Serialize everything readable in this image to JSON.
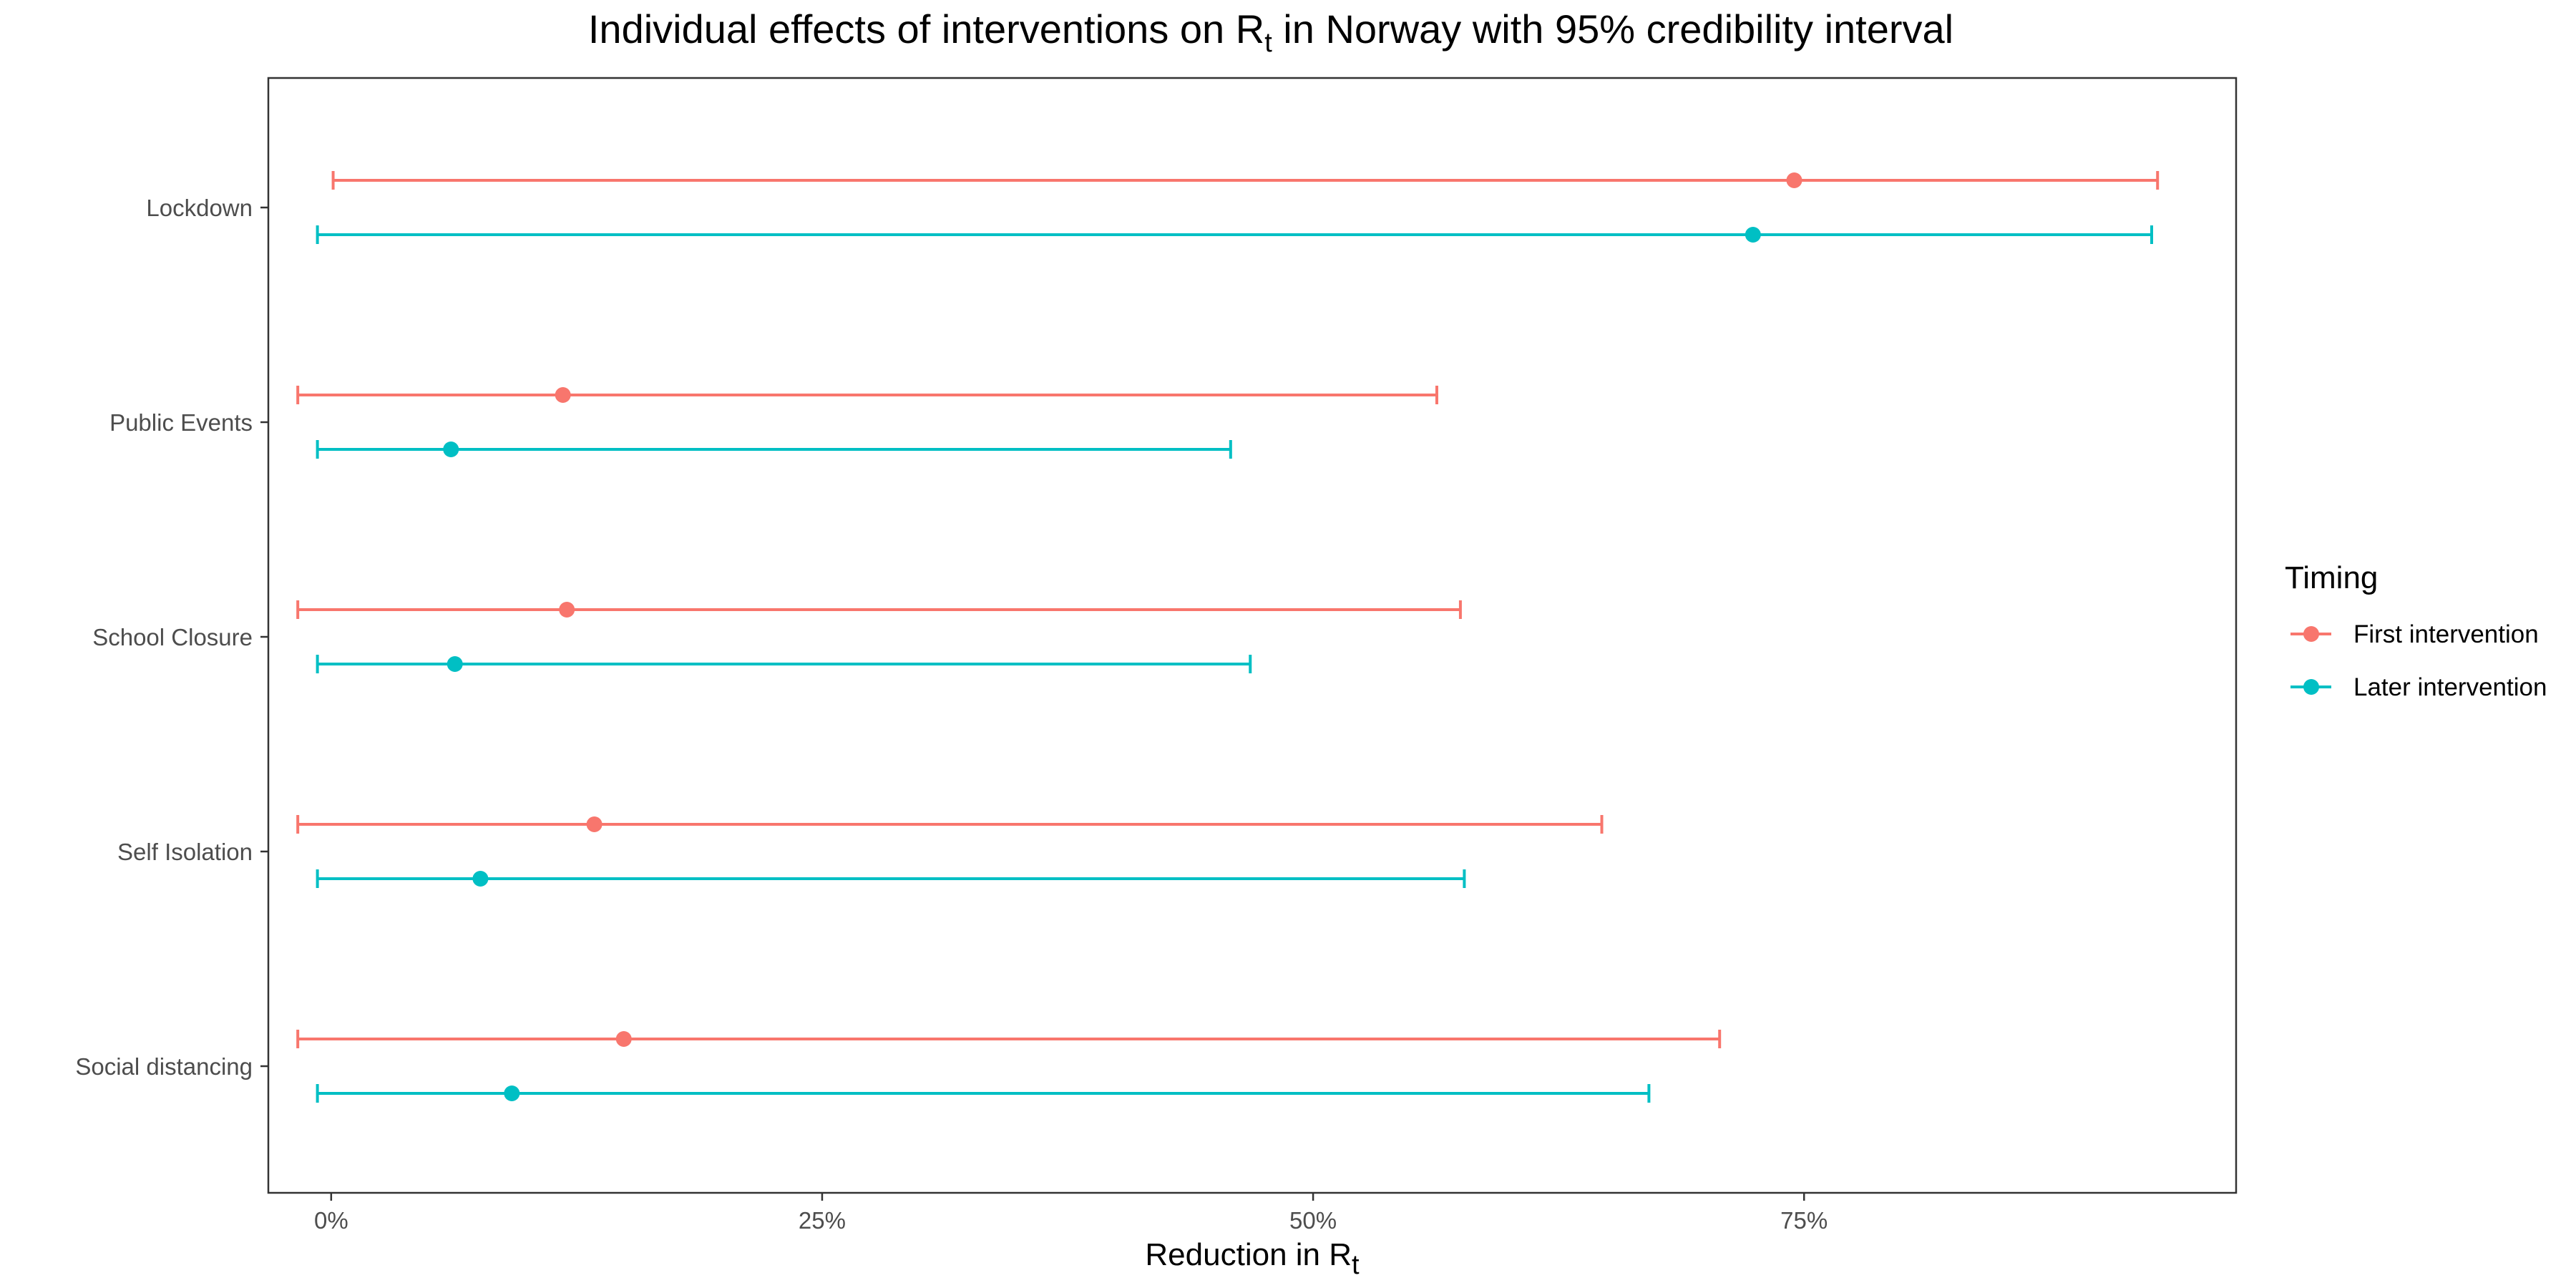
{
  "chart_data": {
    "type": "errorbar",
    "title": {
      "prefix": "Individual effects of interventions on ",
      "symbol": "R",
      "subscript": "t",
      "middle": " in ",
      "country": "Norway",
      "suffix": " with 95% credibility interval"
    },
    "xlabel": {
      "text": "Reduction in ",
      "symbol": "R",
      "subscript": "t"
    },
    "ylabel": "",
    "xlim": [
      -3.2,
      97
    ],
    "x_ticks": [
      0,
      25,
      50,
      75
    ],
    "x_tick_labels": [
      "0%",
      "25%",
      "50%",
      "75%"
    ],
    "x_unit": "percent",
    "categories": [
      "Lockdown",
      "Public Events",
      "School Closure",
      "Self Isolation",
      "Social distancing"
    ],
    "grid": false,
    "legend": {
      "title": "Timing",
      "position": "right",
      "entries": [
        "First intervention",
        "Later intervention"
      ]
    },
    "series": [
      {
        "name": "First intervention",
        "color": "#F8766D",
        "estimate": [
          74.5,
          11.8,
          12.0,
          13.4,
          14.9
        ],
        "lower": [
          0.1,
          -1.7,
          -1.7,
          -1.7,
          -1.7
        ],
        "upper": [
          93.0,
          56.3,
          57.5,
          64.7,
          70.7
        ]
      },
      {
        "name": "Later intervention",
        "color": "#00BFC4",
        "estimate": [
          72.4,
          6.1,
          6.3,
          7.6,
          9.2
        ],
        "lower": [
          -0.7,
          -0.7,
          -0.7,
          -0.7,
          -0.7
        ],
        "upper": [
          92.7,
          45.8,
          46.8,
          57.7,
          67.1
        ]
      }
    ]
  }
}
